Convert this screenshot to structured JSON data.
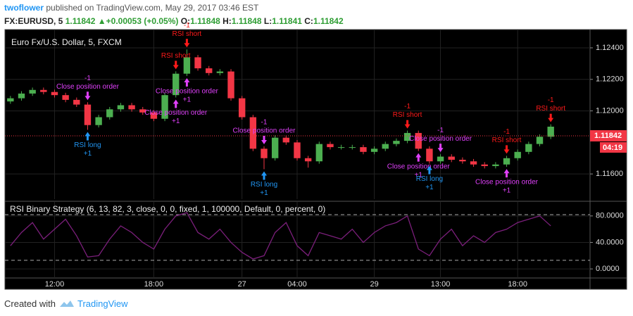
{
  "header": {
    "author": "twoflower",
    "published": "published on TradingView.com, May 29, 2017 03:46 EST",
    "symbol": "FX:EURUSD, 5",
    "price": "1.11842",
    "arrow": "▲",
    "change": "+0.00053 (+0.05%)",
    "o_label": "O:",
    "o": "1.11848",
    "h_label": "H:",
    "h": "1.11848",
    "l_label": "L:",
    "l": "1.11841",
    "c_label": "C:",
    "c": "1.11842"
  },
  "chart_data": {
    "type": "candlestick",
    "title": "Euro Fx/U.S. Dollar, 5, FXCM",
    "up_color": "#4caf50",
    "down_color": "#f23645",
    "categories": [
      null,
      null,
      null,
      null,
      "12:00",
      null,
      null,
      null,
      null,
      null,
      null,
      null,
      null,
      "18:00",
      null,
      null,
      null,
      null,
      null,
      null,
      null,
      "27",
      null,
      null,
      null,
      null,
      "04:00",
      null,
      null,
      null,
      null,
      null,
      null,
      "29",
      null,
      null,
      null,
      null,
      null,
      "13:00",
      null,
      null,
      null,
      null,
      null,
      null,
      "18:00",
      null,
      null,
      null
    ],
    "open": [
      1.1206,
      1.1208,
      1.1211,
      1.12133,
      1.1212,
      1.121,
      1.1207,
      1.1204,
      1.1191,
      1.1196,
      1.1201,
      1.12036,
      1.1201,
      1.1199,
      1.1195,
      1.121,
      1.12236,
      1.1234,
      1.1227,
      1.1224,
      1.1225,
      1.1208,
      1.1196,
      1.1176,
      1.117,
      1.1183,
      1.118,
      1.117,
      1.1168,
      1.1179,
      1.1177,
      1.1177,
      1.1177,
      1.1174,
      1.1176,
      1.1179,
      1.1181,
      1.1186,
      1.1176,
      1.1168,
      1.1171,
      1.1169,
      1.1168,
      1.1166,
      1.1165,
      1.1166,
      1.117,
      1.1174,
      1.1179,
      1.11836
    ],
    "high": [
      1.12095,
      1.12125,
      1.12148,
      1.12148,
      1.12135,
      1.12115,
      1.12085,
      1.12055,
      1.11975,
      1.12025,
      1.12051,
      1.12051,
      1.12025,
      1.12005,
      1.12115,
      1.12251,
      1.1239,
      1.12355,
      1.12285,
      1.12265,
      1.12265,
      1.12095,
      1.11975,
      1.11775,
      1.11845,
      1.11845,
      1.11815,
      1.11715,
      1.11805,
      1.11805,
      1.11785,
      1.11785,
      1.11785,
      1.11775,
      1.11805,
      1.11825,
      1.11875,
      1.11875,
      1.11775,
      1.11725,
      1.11725,
      1.11705,
      1.11695,
      1.11675,
      1.11675,
      1.11715,
      1.11755,
      1.11805,
      1.11851,
      1.11915
    ],
    "low": [
      1.12045,
      1.12065,
      1.12095,
      1.12105,
      1.12085,
      1.12055,
      1.12025,
      1.1188,
      1.11895,
      1.11945,
      1.11995,
      1.11995,
      1.11975,
      1.11935,
      1.11935,
      1.12085,
      1.12221,
      1.12255,
      1.12225,
      1.12225,
      1.12065,
      1.11945,
      1.11745,
      1.1163,
      1.11685,
      1.11785,
      1.11685,
      1.1164,
      1.11665,
      1.11755,
      1.11755,
      1.11755,
      1.11725,
      1.11725,
      1.11745,
      1.11775,
      1.11795,
      1.11745,
      1.11665,
      1.11665,
      1.11675,
      1.11665,
      1.11645,
      1.11635,
      1.11635,
      1.11645,
      1.11685,
      1.11725,
      1.11775,
      1.11821
    ],
    "close": [
      1.1208,
      1.1211,
      1.12133,
      1.1212,
      1.121,
      1.1207,
      1.1204,
      1.1191,
      1.1196,
      1.1201,
      1.12036,
      1.1201,
      1.1199,
      1.1195,
      1.121,
      1.12236,
      1.1234,
      1.1227,
      1.1224,
      1.1225,
      1.1208,
      1.1196,
      1.1176,
      1.117,
      1.1183,
      1.118,
      1.117,
      1.1168,
      1.1179,
      1.1177,
      1.1177,
      1.1177,
      1.1174,
      1.1176,
      1.1179,
      1.1181,
      1.1186,
      1.1176,
      1.1168,
      1.1171,
      1.1169,
      1.1168,
      1.1166,
      1.1165,
      1.1166,
      1.117,
      1.1174,
      1.1179,
      1.11836,
      1.119
    ],
    "ylim": [
      1.1144,
      1.12507
    ],
    "yticks": [
      {
        "value": 1.124,
        "label": "1.12400"
      },
      {
        "value": 1.122,
        "label": "1.12200"
      },
      {
        "value": 1.12,
        "label": "1.12000"
      },
      {
        "value": 1.116,
        "label": "1.11600"
      }
    ],
    "grid": true,
    "last_price": 1.11842,
    "countdown": "04:19",
    "signals": [
      {
        "index": 7,
        "side": "below",
        "color": "#2196f3",
        "texts": [
          "RSI long",
          "+1"
        ]
      },
      {
        "index": 7,
        "side": "above",
        "color": "#e040fb",
        "texts": [
          "-1",
          "Close position order"
        ]
      },
      {
        "index": 15,
        "side": "above",
        "color": "#ff1a1a",
        "texts": [
          "RSI short"
        ]
      },
      {
        "index": 16,
        "side": "above",
        "color": "#ff1a1a",
        "texts": [
          "-1",
          "RSI short"
        ]
      },
      {
        "index": 15,
        "side": "below",
        "color": "#e040fb",
        "texts": [
          "Close position order",
          "+1"
        ]
      },
      {
        "index": 16,
        "side": "below",
        "color": "#e040fb",
        "texts": [
          "Close position order",
          "+1"
        ]
      },
      {
        "index": 23,
        "side": "below",
        "color": "#2196f3",
        "texts": [
          "RSI long",
          "+1"
        ]
      },
      {
        "index": 23,
        "side": "above",
        "color": "#e040fb",
        "texts": [
          "-1",
          "Close position order"
        ]
      },
      {
        "index": 36,
        "side": "above",
        "color": "#ff1a1a",
        "texts": [
          "-1",
          "RSI short"
        ]
      },
      {
        "index": 37,
        "side": "below",
        "color": "#e040fb",
        "texts": [
          "Close position order",
          "+1"
        ]
      },
      {
        "index": 38,
        "side": "below",
        "color": "#2196f3",
        "texts": [
          "RSI long",
          "+1"
        ]
      },
      {
        "index": 39,
        "side": "above",
        "color": "#e040fb",
        "texts": [
          "-1",
          "Close position order"
        ]
      },
      {
        "index": 45,
        "side": "above",
        "color": "#ff1a1a",
        "texts": [
          "-1",
          "RSI short"
        ]
      },
      {
        "index": 45,
        "side": "below",
        "color": "#e040fb",
        "texts": [
          "Close position order",
          "+1"
        ]
      },
      {
        "index": 49,
        "side": "above",
        "color": "#ff1a1a",
        "texts": [
          "-1",
          "RSI short"
        ]
      }
    ],
    "indicator": {
      "type": "line",
      "title": "RSI Binary Strategy (6, 13, 82, 3, close, 0, 0, fixed, 1, 100000, Default, 0, percent, 0)",
      "color": "#7b1f7b",
      "values": [
        35,
        55,
        70,
        45,
        60,
        75,
        50,
        18,
        20,
        45,
        65,
        55,
        40,
        30,
        60,
        80,
        85,
        55,
        45,
        60,
        40,
        25,
        15,
        20,
        55,
        70,
        35,
        20,
        55,
        50,
        45,
        60,
        40,
        55,
        65,
        70,
        80,
        30,
        20,
        45,
        60,
        35,
        50,
        40,
        55,
        60,
        70,
        75,
        80,
        65
      ],
      "ylim": [
        -13.7,
        100
      ],
      "yticks": [
        {
          "value": 80,
          "label": "80.0000"
        },
        {
          "value": 40,
          "label": "40.0000"
        },
        {
          "value": 0,
          "label": "0.0000"
        }
      ],
      "levels": [
        82,
        13
      ]
    }
  },
  "footer": {
    "created": "Created with",
    "brand": "TradingView"
  }
}
